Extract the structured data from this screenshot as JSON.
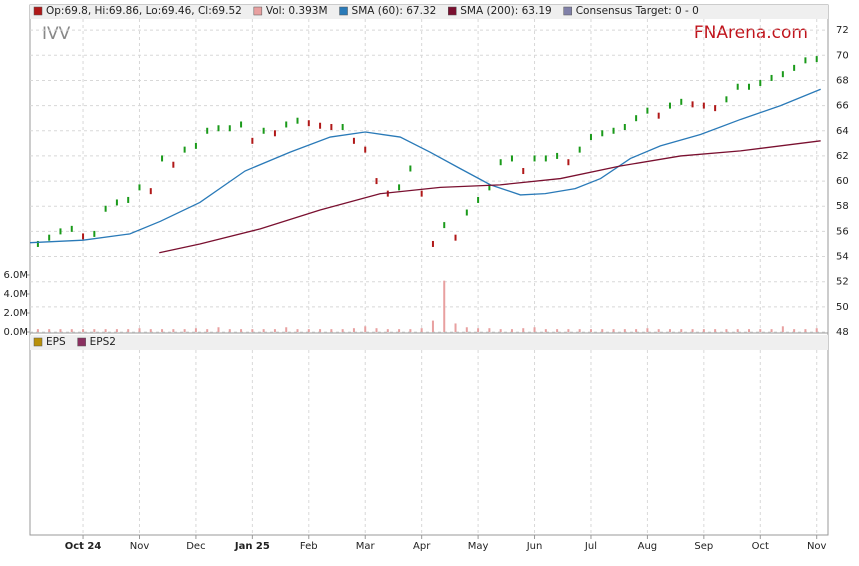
{
  "chart_data": [
    {
      "type": "stock",
      "ticker": "IVV",
      "watermark": "FNArena.com",
      "xlim": [
        -0.94,
        13.2
      ],
      "xticks": [
        {
          "value": 0,
          "label": "Oct 24"
        },
        {
          "value": 1,
          "label": "Nov"
        },
        {
          "value": 2,
          "label": "Dec"
        },
        {
          "value": 3,
          "label": "Jan 25"
        },
        {
          "value": 4,
          "label": "Feb"
        },
        {
          "value": 5,
          "label": "Mar"
        },
        {
          "value": 6,
          "label": "Apr"
        },
        {
          "value": 7,
          "label": "May"
        },
        {
          "value": 8,
          "label": "Jun"
        },
        {
          "value": 9,
          "label": "Jul"
        },
        {
          "value": 10,
          "label": "Aug"
        },
        {
          "value": 11,
          "label": "Sep"
        },
        {
          "value": 12,
          "label": "Oct"
        },
        {
          "value": 13,
          "label": "Nov"
        }
      ],
      "ylim": [
        48,
        74
      ],
      "yticks": [
        48,
        50,
        52,
        54,
        56,
        58,
        60,
        62,
        64,
        66,
        68,
        70,
        72
      ],
      "y2lim": [
        0,
        34.4
      ],
      "y2ticks": [
        {
          "value": 0,
          "label": "0.0M"
        },
        {
          "value": 2,
          "label": "2.0M"
        },
        {
          "value": 4,
          "label": "4.0M"
        },
        {
          "value": 6,
          "label": "6.0M"
        }
      ],
      "grid": true,
      "series": [
        {
          "name": "Op:69.8, Hi:69.86, Lo:69.46, Cl:69.52",
          "color": "#b01818",
          "kind": "price",
          "x": [
            -0.8,
            -0.6,
            -0.4,
            -0.2,
            0,
            0.2,
            0.4,
            0.6,
            0.8,
            1.0,
            1.2,
            1.4,
            1.6,
            1.8,
            2.0,
            2.2,
            2.4,
            2.6,
            2.8,
            3.0,
            3.2,
            3.4,
            3.6,
            3.8,
            4.0,
            4.2,
            4.4,
            4.6,
            4.8,
            5.0,
            5.2,
            5.4,
            5.6,
            5.8,
            6.0,
            6.2,
            6.4,
            6.6,
            6.8,
            7.0,
            7.2,
            7.4,
            7.6,
            7.8,
            8.0,
            8.2,
            8.4,
            8.6,
            8.8,
            9.0,
            9.2,
            9.4,
            9.6,
            9.8,
            10.0,
            10.2,
            10.4,
            10.6,
            10.8,
            11.0,
            11.2,
            11.4,
            11.6,
            11.8,
            12.0,
            12.2,
            12.4,
            12.6,
            12.8,
            13.0
          ],
          "values": [
            55.0,
            55.5,
            56.0,
            56.2,
            55.6,
            55.8,
            57.8,
            58.3,
            58.5,
            59.5,
            59.2,
            61.8,
            61.3,
            62.5,
            62.8,
            64.0,
            64.2,
            64.2,
            64.5,
            63.2,
            64.0,
            63.8,
            64.5,
            64.8,
            64.6,
            64.4,
            64.3,
            64.3,
            63.2,
            62.5,
            60.0,
            59.0,
            59.5,
            61.0,
            59.0,
            55.0,
            56.5,
            55.5,
            57.5,
            58.5,
            59.5,
            61.5,
            61.8,
            60.8,
            61.8,
            61.8,
            62.0,
            61.5,
            62.5,
            63.5,
            63.8,
            64.0,
            64.3,
            65.0,
            65.6,
            65.2,
            66.0,
            66.3,
            66.1,
            66.0,
            65.8,
            66.5,
            67.5,
            67.5,
            67.8,
            68.2,
            68.5,
            69.0,
            69.6,
            69.7
          ]
        },
        {
          "name": "Vol: 0.393M",
          "color": "#e8a0a0",
          "kind": "volume",
          "axis": "y2",
          "x": [
            -0.8,
            -0.6,
            -0.4,
            -0.2,
            0,
            0.2,
            0.4,
            0.6,
            0.8,
            1.0,
            1.2,
            1.4,
            1.6,
            1.8,
            2.0,
            2.2,
            2.4,
            2.6,
            2.8,
            3.0,
            3.2,
            3.4,
            3.6,
            3.8,
            4.0,
            4.2,
            4.4,
            4.6,
            4.8,
            5.0,
            5.2,
            5.4,
            5.6,
            5.8,
            6.0,
            6.2,
            6.4,
            6.6,
            6.8,
            7.0,
            7.2,
            7.4,
            7.6,
            7.8,
            8.0,
            8.2,
            8.4,
            8.6,
            8.8,
            9.0,
            9.2,
            9.4,
            9.6,
            9.8,
            10.0,
            10.2,
            10.4,
            10.6,
            10.8,
            11.0,
            11.2,
            11.4,
            11.6,
            11.8,
            12.0,
            12.2,
            12.4,
            12.6,
            12.8,
            13.0
          ],
          "values": [
            0.3,
            0.3,
            0.3,
            0.3,
            0.3,
            0.3,
            0.3,
            0.3,
            0.3,
            0.4,
            0.3,
            0.3,
            0.3,
            0.3,
            0.4,
            0.3,
            0.5,
            0.3,
            0.3,
            0.3,
            0.3,
            0.3,
            0.5,
            0.3,
            0.3,
            0.3,
            0.3,
            0.3,
            0.4,
            0.6,
            0.4,
            0.3,
            0.3,
            0.3,
            0.4,
            1.2,
            5.4,
            0.9,
            0.5,
            0.4,
            0.4,
            0.3,
            0.3,
            0.4,
            0.5,
            0.3,
            0.3,
            0.3,
            0.3,
            0.3,
            0.3,
            0.3,
            0.3,
            0.3,
            0.4,
            0.3,
            0.3,
            0.3,
            0.3,
            0.3,
            0.3,
            0.3,
            0.3,
            0.3,
            0.3,
            0.3,
            0.6,
            0.3,
            0.3,
            0.4
          ]
        },
        {
          "name": "SMA (60): 67.32",
          "color": "#2a7ab8",
          "kind": "line",
          "x": [
            -0.94,
            0,
            0.83,
            1.37,
            2.07,
            2.87,
            3.67,
            4.38,
            5.0,
            5.62,
            6.15,
            6.68,
            7.22,
            7.75,
            8.19,
            8.72,
            9.17,
            9.7,
            10.23,
            10.94,
            11.65,
            12.36,
            13.07
          ],
          "values": [
            55.1,
            55.3,
            55.8,
            56.8,
            58.3,
            60.8,
            62.3,
            63.5,
            63.9,
            63.5,
            62.3,
            61.0,
            59.7,
            58.9,
            59.0,
            59.4,
            60.2,
            61.8,
            62.8,
            63.7,
            64.9,
            66.0,
            67.3
          ]
        },
        {
          "name": "SMA (200): 63.19",
          "color": "#7a1030",
          "kind": "line",
          "x": [
            1.35,
            2.07,
            3.14,
            4.2,
            5.27,
            6.33,
            7.39,
            8.46,
            9.52,
            10.59,
            11.65,
            13.07
          ],
          "values": [
            54.3,
            55.0,
            56.2,
            57.7,
            59.0,
            59.5,
            59.7,
            60.2,
            61.2,
            62.0,
            62.4,
            63.2
          ]
        }
      ],
      "extra_legend": {
        "label": "Consensus Target: 0 - 0",
        "color": "#8080a8"
      }
    },
    {
      "type": "line",
      "series": [
        {
          "name": "EPS",
          "color": "#b8900a",
          "values": []
        },
        {
          "name": "EPS2",
          "color": "#8a3060",
          "values": []
        }
      ]
    }
  ]
}
